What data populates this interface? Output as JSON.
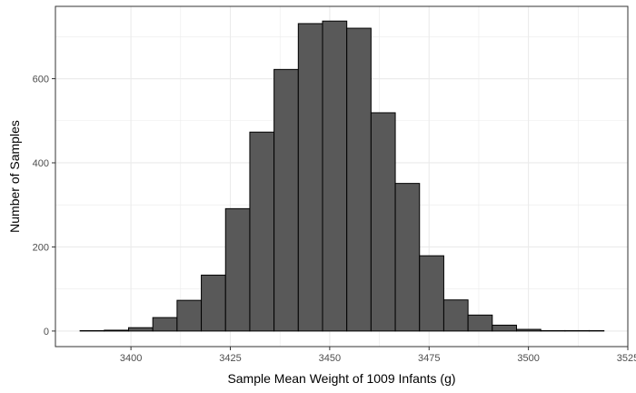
{
  "chart_data": {
    "type": "bar",
    "subtype": "histogram",
    "title": "",
    "xlabel": "Sample Mean Weight of 1009 Infants (g)",
    "ylabel": "Number of Samples",
    "xlim": [
      3381,
      3525
    ],
    "ylim": [
      -37,
      772
    ],
    "x_ticks": [
      3400,
      3425,
      3450,
      3475,
      3500,
      3525
    ],
    "x_tick_labels": [
      "3400",
      "3425",
      "3450",
      "3475",
      "3500",
      "3525"
    ],
    "y_ticks": [
      0,
      200,
      400,
      600
    ],
    "y_tick_labels": [
      "0",
      "200",
      "400",
      "600"
    ],
    "grid": true,
    "bin_edges": [
      3387.2,
      3393.3,
      3399.4,
      3405.5,
      3411.6,
      3417.7,
      3423.8,
      3429.9,
      3436.0,
      3442.1,
      3448.2,
      3454.3,
      3460.4,
      3466.5,
      3472.6,
      3478.7,
      3484.8,
      3490.9,
      3497.0,
      3503.1,
      3509.2,
      3515.3,
      3519.0
    ],
    "counts": [
      1,
      2,
      8,
      32,
      73,
      133,
      291,
      473,
      622,
      731,
      737,
      720,
      519,
      351,
      179,
      74,
      38,
      14,
      4,
      1,
      1,
      1
    ],
    "colors": {
      "bar_fill": "#595959",
      "bar_stroke": "#000000",
      "grid": "#ebebeb",
      "panel_border": "#333333"
    }
  }
}
